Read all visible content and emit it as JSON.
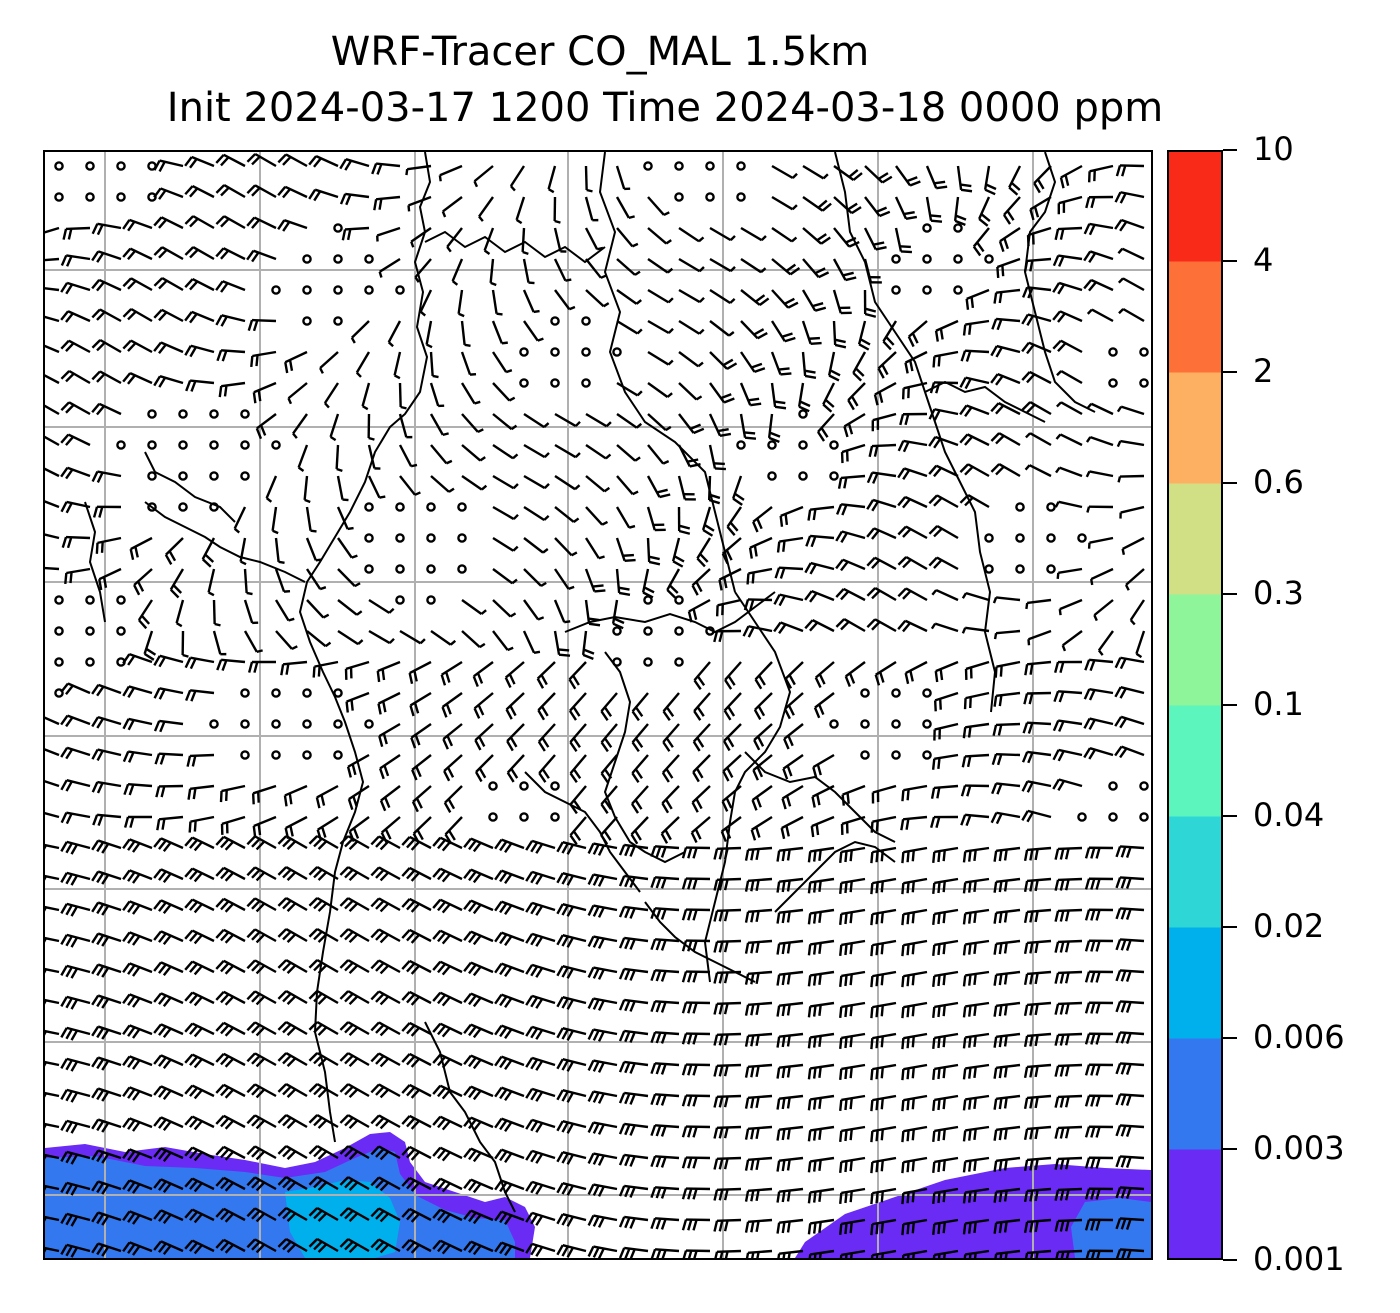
{
  "title": {
    "line1": "WRF-Tracer CO_MAL 1.5km",
    "line2": "Init 2024-03-17 1200 Time 2024-03-18 0000 ppm"
  },
  "colorbar": {
    "levels": [
      "0.001",
      "0.003",
      "0.006",
      "0.02",
      "0.04",
      "0.1",
      "0.3",
      "0.6",
      "2",
      "4",
      "10"
    ],
    "colors": [
      "#6a2cf5",
      "#3478f0",
      "#00b0ec",
      "#2ed6d6",
      "#5cf5be",
      "#8ef59a",
      "#d2e085",
      "#fdb062",
      "#fd7038",
      "#fa2a18"
    ]
  },
  "map": {
    "field": "CO_MAL tracer concentration",
    "gridlines": true,
    "overlay": "wind barbs",
    "coastlines": true
  }
}
